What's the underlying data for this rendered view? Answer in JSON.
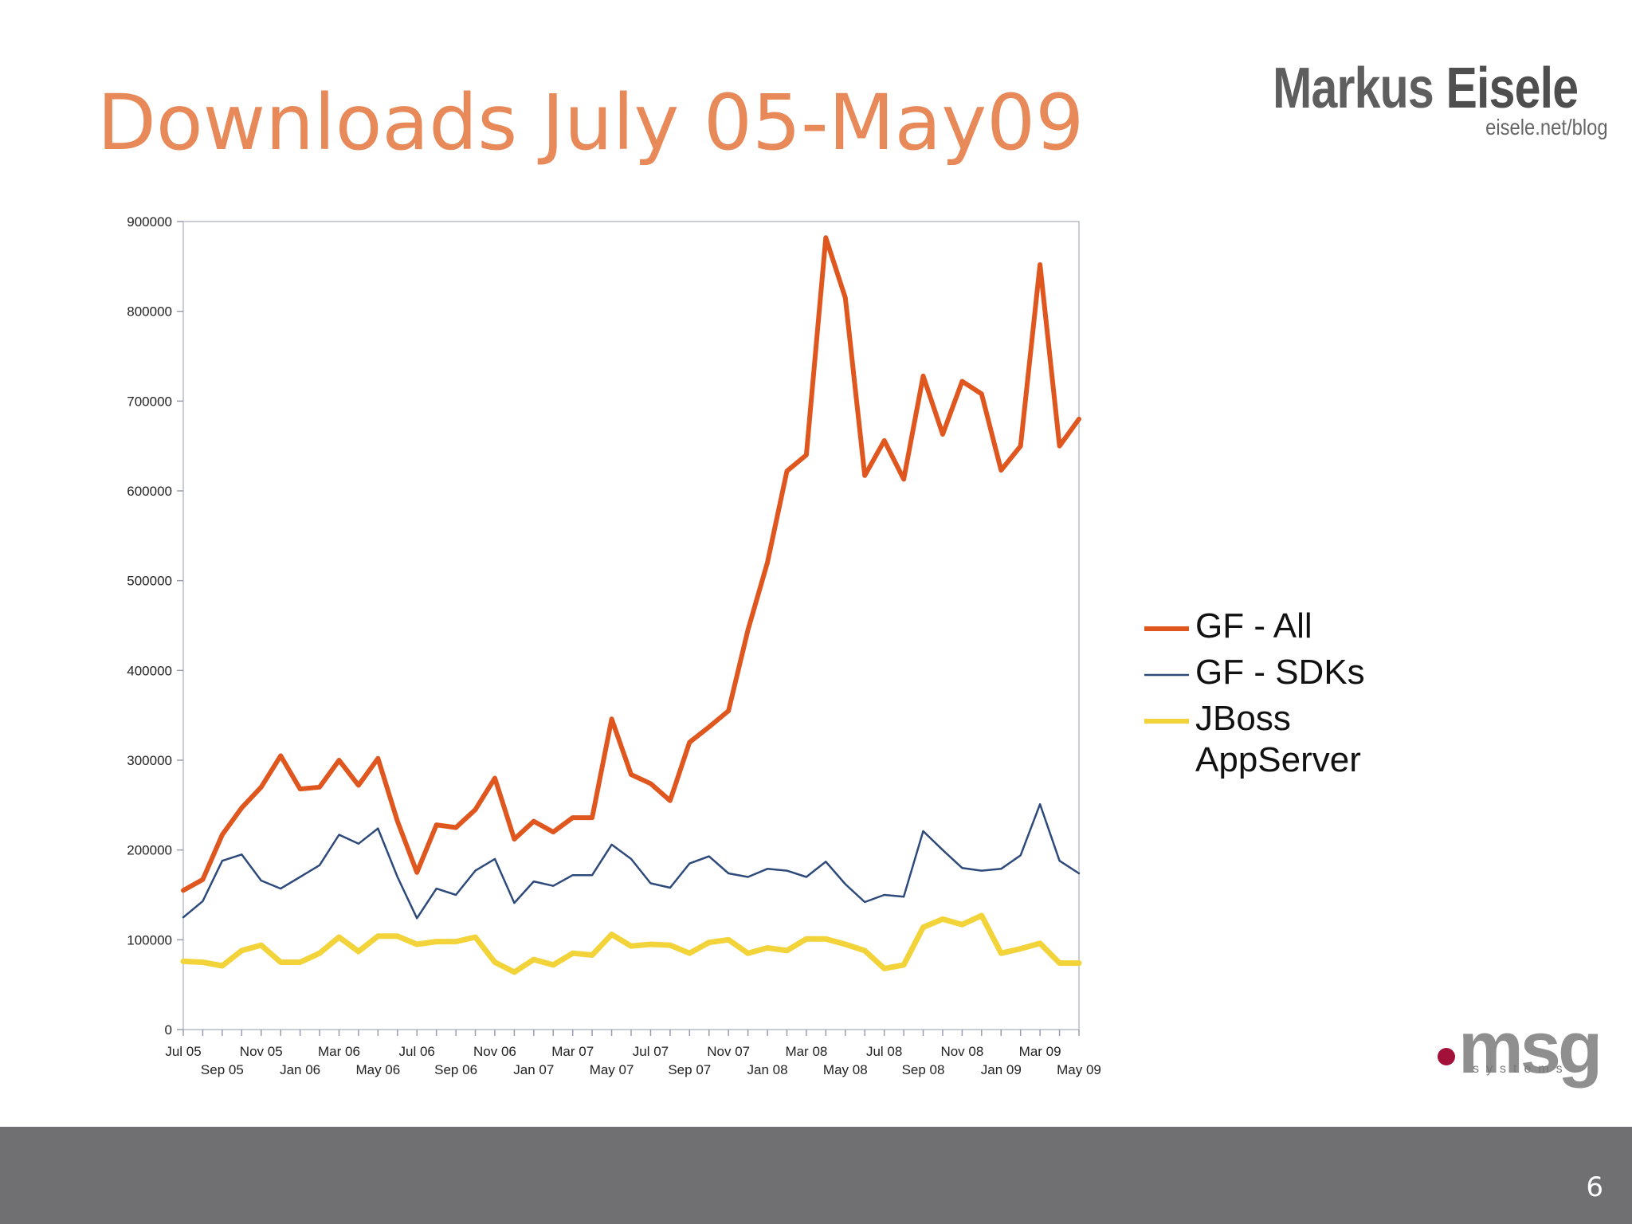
{
  "slide": {
    "title": "Downloads July 05-May09",
    "page_number": "6"
  },
  "branding": {
    "name_light": "Markus ",
    "name_bold": "Eisele",
    "url": "eisele.net/blog",
    "company_logo_text": "msg",
    "company_logo_subtext": "systems",
    "company_logo_dot_color": "#a3113a"
  },
  "chart_data": {
    "type": "line",
    "title": "",
    "xlabel": "",
    "ylabel": "",
    "ylim": [
      0,
      900000
    ],
    "y_ticks": [
      0,
      100000,
      200000,
      300000,
      400000,
      500000,
      600000,
      700000,
      800000,
      900000
    ],
    "grid": false,
    "legend_position": "right",
    "x_tick_labels_row1": [
      "Jul 05",
      "Nov 05",
      "Mar 06",
      "Jul 06",
      "Nov 06",
      "Mar 07",
      "Jul 07",
      "Nov 07",
      "Mar 08",
      "Jul 08",
      "Nov 08",
      "Mar 09"
    ],
    "x_tick_labels_row2": [
      "Sep 05",
      "Jan 06",
      "May 06",
      "Sep 06",
      "Jan 07",
      "May 07",
      "Sep 07",
      "Jan 08",
      "May 08",
      "Sep 08",
      "Jan 09",
      "May 09"
    ],
    "categories": [
      "Jul 05",
      "Aug 05",
      "Sep 05",
      "Oct 05",
      "Nov 05",
      "Dec 05",
      "Jan 06",
      "Feb 06",
      "Mar 06",
      "Apr 06",
      "May 06",
      "Jun 06",
      "Jul 06",
      "Aug 06",
      "Sep 06",
      "Oct 06",
      "Nov 06",
      "Dec 06",
      "Jan 07",
      "Feb 07",
      "Mar 07",
      "Apr 07",
      "May 07",
      "Jun 07",
      "Jul 07",
      "Aug 07",
      "Sep 07",
      "Oct 07",
      "Nov 07",
      "Dec 07",
      "Jan 08",
      "Feb 08",
      "Mar 08",
      "Apr 08",
      "May 08",
      "Jun 08",
      "Jul 08",
      "Aug 08",
      "Sep 08",
      "Oct 08",
      "Nov 08",
      "Dec 08",
      "Jan 09",
      "Feb 09",
      "Mar 09",
      "Apr 09",
      "May 09"
    ],
    "series": [
      {
        "name": "GF - All",
        "color": "#e0561f",
        "values": [
          155000,
          167000,
          217000,
          247000,
          270000,
          305000,
          268000,
          270000,
          300000,
          272000,
          302000,
          232000,
          175000,
          228000,
          225000,
          245000,
          280000,
          212000,
          232000,
          220000,
          236000,
          236000,
          346000,
          284000,
          274000,
          255000,
          320000,
          337000,
          355000,
          445000,
          520000,
          622000,
          640000,
          882000,
          815000,
          617000,
          656000,
          613000,
          728000,
          663000,
          722000,
          708000,
          623000,
          650000,
          852000,
          650000,
          680000
        ]
      },
      {
        "name": "GF - SDKs",
        "color": "#2d4a7a",
        "values": [
          125000,
          143000,
          188000,
          195000,
          166000,
          157000,
          170000,
          183000,
          217000,
          207000,
          224000,
          170000,
          124000,
          157000,
          150000,
          177000,
          190000,
          141000,
          165000,
          160000,
          172000,
          172000,
          206000,
          190000,
          163000,
          158000,
          185000,
          193000,
          174000,
          170000,
          179000,
          177000,
          170000,
          187000,
          162000,
          142000,
          150000,
          148000,
          221000,
          200000,
          180000,
          177000,
          179000,
          194000,
          251000,
          188000,
          174000
        ]
      },
      {
        "name": "JBoss\nAppServer",
        "color": "#f2d43a",
        "values": [
          76000,
          75000,
          71000,
          88000,
          94000,
          75000,
          75000,
          85000,
          103000,
          87000,
          104000,
          104000,
          95000,
          98000,
          98000,
          103000,
          75000,
          64000,
          78000,
          72000,
          85000,
          83000,
          106000,
          93000,
          95000,
          94000,
          85000,
          97000,
          100000,
          85000,
          91000,
          88000,
          101000,
          101000,
          95000,
          88000,
          68000,
          72000,
          114000,
          123000,
          117000,
          127000,
          85000,
          90000,
          96000,
          74000,
          74000
        ]
      }
    ]
  }
}
